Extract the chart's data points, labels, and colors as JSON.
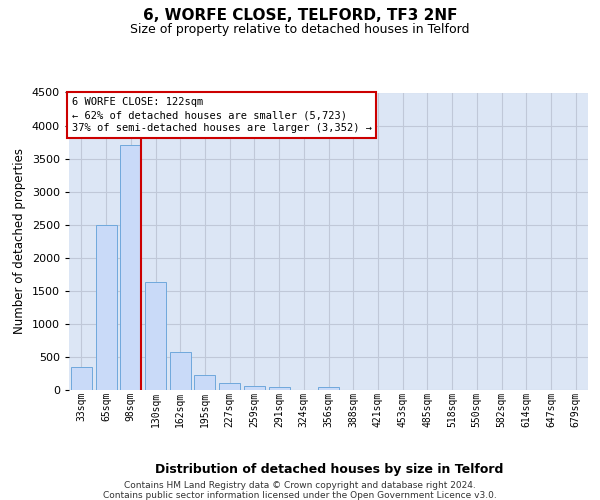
{
  "title": "6, WORFE CLOSE, TELFORD, TF3 2NF",
  "subtitle": "Size of property relative to detached houses in Telford",
  "xlabel": "Distribution of detached houses by size in Telford",
  "ylabel": "Number of detached properties",
  "footer_line1": "Contains HM Land Registry data © Crown copyright and database right 2024.",
  "footer_line2": "Contains public sector information licensed under the Open Government Licence v3.0.",
  "bar_labels": [
    "33sqm",
    "65sqm",
    "98sqm",
    "130sqm",
    "162sqm",
    "195sqm",
    "227sqm",
    "259sqm",
    "291sqm",
    "324sqm",
    "356sqm",
    "388sqm",
    "421sqm",
    "453sqm",
    "485sqm",
    "518sqm",
    "550sqm",
    "582sqm",
    "614sqm",
    "647sqm",
    "679sqm"
  ],
  "bar_values": [
    350,
    2500,
    3700,
    1630,
    580,
    220,
    100,
    60,
    40,
    0,
    50,
    0,
    0,
    0,
    0,
    0,
    0,
    0,
    0,
    0,
    0
  ],
  "bar_color": "#c9daf8",
  "bar_edge_color": "#6fa8dc",
  "ylim_max": 4500,
  "yticks": [
    0,
    500,
    1000,
    1500,
    2000,
    2500,
    3000,
    3500,
    4000,
    4500
  ],
  "red_line_bin_index": 2,
  "annotation_line1": "6 WORFE CLOSE: 122sqm",
  "annotation_line2": "← 62% of detached houses are smaller (5,723)",
  "annotation_line3": "37% of semi-detached houses are larger (3,352) →",
  "red_line_color": "#cc0000",
  "annotation_border_color": "#cc0000",
  "grid_color": "#c0c8d8",
  "plot_bg_color": "#dce6f5",
  "fig_width": 6.0,
  "fig_height": 5.0,
  "dpi": 100
}
